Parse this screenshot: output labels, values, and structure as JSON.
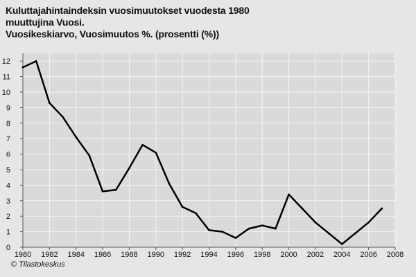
{
  "chart_data": {
    "type": "line",
    "title": "Kuluttajahintaindeksin vuosimuutokset vuodesta 1980",
    "title_lines": [
      "Kuluttajahintaindeksin vuosimuutokset vuodesta 1980",
      "muuttujina Vuosi.",
      "Vuosikeskiarvo, Vuosimuutos %. (prosentti (%))"
    ],
    "xlabel": "",
    "ylabel": "",
    "xlim": [
      1980,
      2008
    ],
    "ylim": [
      0,
      12.5
    ],
    "x_ticks": [
      1980,
      1982,
      1984,
      1986,
      1988,
      1990,
      1992,
      1994,
      1996,
      1998,
      2000,
      2002,
      2004,
      2006,
      2008
    ],
    "y_ticks": [
      0,
      1,
      2,
      3,
      4,
      5,
      6,
      7,
      8,
      9,
      10,
      11,
      12
    ],
    "grid": true,
    "line_color": "#000000",
    "plot_background": "#dadada",
    "page_background": "#e6e6e6",
    "series": [
      {
        "x": [
          1980,
          1981,
          1982,
          1983,
          1984,
          1985,
          1986,
          1987,
          1988,
          1989,
          1990,
          1991,
          1992,
          1993,
          1994,
          1995,
          1996,
          1997,
          1998,
          1999,
          2000,
          2001,
          2002,
          2003,
          2004,
          2005,
          2006,
          2007
        ],
        "values": [
          11.6,
          12.0,
          9.3,
          8.4,
          7.1,
          5.9,
          3.6,
          3.7,
          5.1,
          6.6,
          6.1,
          4.1,
          2.6,
          2.2,
          1.1,
          1.0,
          0.6,
          1.2,
          1.4,
          1.2,
          3.4,
          2.5,
          1.6,
          0.9,
          0.2,
          0.9,
          1.6,
          2.5
        ]
      }
    ]
  },
  "credit": {
    "symbol": "©",
    "text": "Tilastokeskus"
  }
}
